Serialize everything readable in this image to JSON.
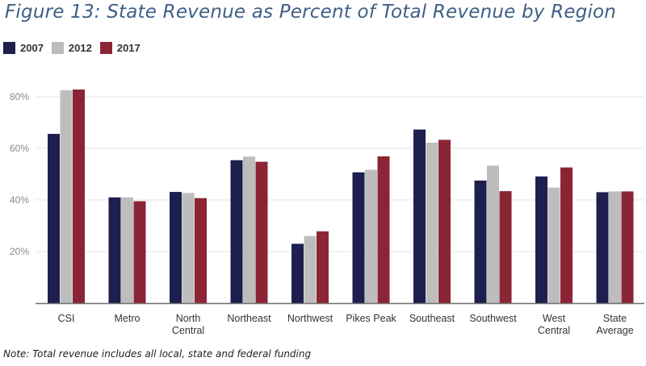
{
  "chart_data": {
    "type": "bar",
    "title": "Figure 13: State Revenue as Percent of Total Revenue by Region",
    "xlabel": "",
    "ylabel": "",
    "ylim": [
      0,
      80
    ],
    "yticks": [
      20,
      40,
      60,
      80
    ],
    "ytick_labels": [
      "20%",
      "40%",
      "60%",
      "80%"
    ],
    "grid": true,
    "legend_position": "top-left",
    "categories": [
      [
        "CSI"
      ],
      [
        "Metro"
      ],
      [
        "North",
        "Central"
      ],
      [
        "Northeast"
      ],
      [
        "Northwest"
      ],
      [
        "Pikes Peak"
      ],
      [
        "Southeast"
      ],
      [
        "Southwest"
      ],
      [
        "West",
        "Central"
      ],
      [
        "State",
        "Average"
      ]
    ],
    "series": [
      {
        "name": "2007",
        "color": "#1e1f4f",
        "values": [
          65.6,
          41.0,
          43.1,
          55.4,
          23.0,
          50.7,
          67.3,
          47.5,
          49.1,
          43.0
        ]
      },
      {
        "name": "2012",
        "color": "#bdbdbd",
        "values": [
          82.5,
          41.0,
          42.7,
          56.8,
          26.0,
          51.7,
          62.2,
          53.3,
          44.8,
          43.3
        ]
      },
      {
        "name": "2017",
        "color": "#8b2535",
        "values": [
          82.8,
          39.5,
          40.7,
          54.8,
          27.8,
          56.9,
          63.3,
          43.4,
          52.6,
          43.3
        ]
      }
    ],
    "note": "Note: Total revenue includes all local, state and federal funding"
  }
}
